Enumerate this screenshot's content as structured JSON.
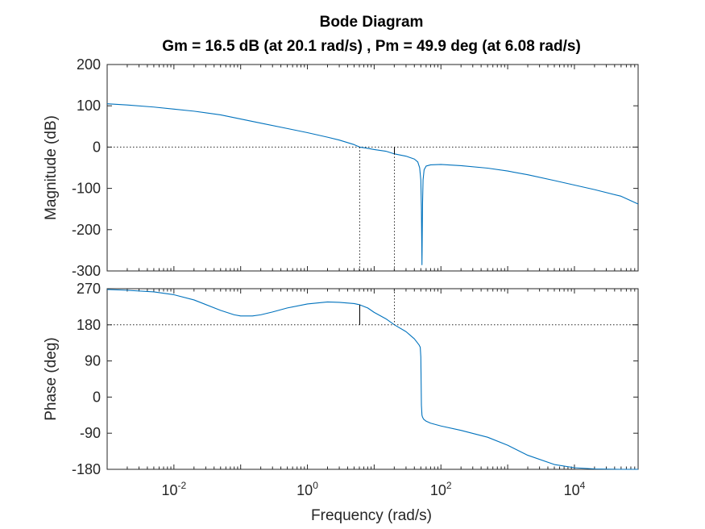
{
  "chart_data": {
    "type": "line",
    "title": "Bode Diagram",
    "subtitle": "Gm = 16.5 dB (at 20.1 rad/s) ,  Pm = 49.9 deg (at 6.08 rad/s)",
    "xlabel": "Frequency  (rad/s)",
    "xscale": "log",
    "xlim": [
      0.001,
      90000
    ],
    "x_ticks": [
      {
        "base": "10",
        "exp": "-2",
        "value": 0.01
      },
      {
        "base": "10",
        "exp": "0",
        "value": 1
      },
      {
        "base": "10",
        "exp": "2",
        "value": 100
      },
      {
        "base": "10",
        "exp": "4",
        "value": 10000
      }
    ],
    "color": "#0072bd",
    "gain_margin": {
      "value_db": 16.5,
      "freq": 20.1
    },
    "phase_margin": {
      "value_deg": 49.9,
      "freq": 6.08
    },
    "magnitude": {
      "ylabel": "Magnitude (dB)",
      "ylim": [
        -300,
        200
      ],
      "yticks": [
        "200",
        "100",
        "0",
        "-100",
        "-200",
        "-300"
      ],
      "ytick_values": [
        200,
        100,
        0,
        -100,
        -200,
        -300
      ],
      "reference": 0,
      "series": [
        {
          "x": [
            0.001,
            0.002,
            0.005,
            0.01,
            0.02,
            0.05,
            0.1,
            0.2,
            0.5,
            1,
            2,
            3,
            5,
            6.08,
            8,
            10,
            15,
            20.1,
            30,
            40,
            45,
            48,
            50,
            51,
            52,
            53,
            54,
            56,
            60,
            70,
            100,
            200,
            500,
            1000,
            2000,
            5000,
            10000,
            20000,
            50000,
            90000
          ],
          "y": [
            105,
            102,
            97,
            92,
            87,
            78,
            68,
            58,
            45,
            35,
            24,
            17,
            6,
            0,
            -3,
            -6,
            -10,
            -16.5,
            -22,
            -29,
            -36,
            -50,
            -80,
            -150,
            -285,
            -140,
            -80,
            -55,
            -46,
            -43,
            -42,
            -45,
            -51,
            -58,
            -67,
            -81,
            -92,
            -103,
            -119,
            -138
          ]
        }
      ]
    },
    "phase": {
      "ylabel": "Phase (deg)",
      "ylim": [
        -180,
        270
      ],
      "yticks": [
        "270",
        "180",
        "90",
        "0",
        "-90",
        "-180"
      ],
      "ytick_values": [
        270,
        180,
        90,
        0,
        -90,
        -180
      ],
      "reference": 180,
      "series": [
        {
          "x": [
            0.001,
            0.002,
            0.005,
            0.01,
            0.02,
            0.05,
            0.08,
            0.1,
            0.15,
            0.2,
            0.3,
            0.5,
            1,
            2,
            3,
            5,
            6.08,
            8,
            10,
            15,
            20.1,
            30,
            40,
            47,
            49,
            50,
            51,
            52,
            53,
            55,
            60,
            70,
            100,
            200,
            500,
            1000,
            2000,
            5000,
            10000,
            20000,
            50000,
            90000
          ],
          "y": [
            268,
            266,
            262,
            255,
            242,
            216,
            205,
            202,
            202,
            205,
            212,
            222,
            232,
            237,
            236,
            233,
            229.9,
            222,
            211,
            195,
            180,
            163,
            145,
            130,
            124,
            100,
            -20,
            -45,
            -50,
            -55,
            -60,
            -65,
            -72,
            -83,
            -100,
            -120,
            -145,
            -168,
            -176,
            -179,
            -180,
            -180
          ]
        }
      ]
    }
  }
}
